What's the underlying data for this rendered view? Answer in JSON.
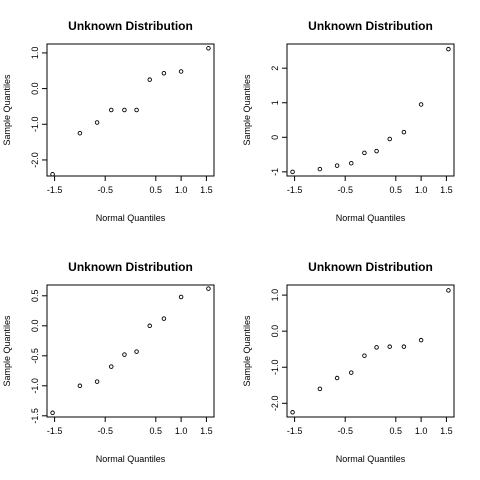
{
  "chart_data": [
    {
      "type": "scatter",
      "title": "Unknown Distribution",
      "xlabel": "Normal Quantiles",
      "ylabel": "Sample Quantiles",
      "xlim": [
        -1.65,
        1.65
      ],
      "ylim": [
        -2.45,
        1.25
      ],
      "x_ticks": [
        "-1.5",
        "-0.5",
        "0.5",
        "1.0",
        "1.5"
      ],
      "y_ticks": [
        "-2.0",
        "-1.0",
        "0.0",
        "1.0"
      ],
      "x": [
        -1.54,
        -1.0,
        -0.66,
        -0.38,
        -0.12,
        0.12,
        0.38,
        0.66,
        1.0,
        1.54
      ],
      "y": [
        -2.4,
        -1.25,
        -0.95,
        -0.6,
        -0.6,
        -0.6,
        0.25,
        0.43,
        0.48,
        1.13
      ]
    },
    {
      "type": "scatter",
      "title": "Unknown Distribution",
      "xlabel": "Normal Quantiles",
      "ylabel": "Sample Quantiles",
      "xlim": [
        -1.65,
        1.65
      ],
      "ylim": [
        -1.12,
        2.7
      ],
      "x_ticks": [
        "-1.5",
        "-0.5",
        "0.5",
        "1.0",
        "1.5"
      ],
      "y_ticks": [
        "-1",
        "0",
        "1",
        "2"
      ],
      "x": [
        -1.54,
        -1.0,
        -0.66,
        -0.38,
        -0.12,
        0.12,
        0.38,
        0.66,
        1.0,
        1.54
      ],
      "y": [
        -1.0,
        -0.92,
        -0.82,
        -0.75,
        -0.45,
        -0.4,
        -0.05,
        0.15,
        0.95,
        2.55
      ]
    },
    {
      "type": "scatter",
      "title": "Unknown Distribution",
      "xlabel": "Normal Quantiles",
      "ylabel": "Sample Quantiles",
      "xlim": [
        -1.65,
        1.65
      ],
      "ylim": [
        -1.52,
        0.68
      ],
      "x_ticks": [
        "-1.5",
        "-0.5",
        "0.5",
        "1.0",
        "1.5"
      ],
      "y_ticks": [
        "-1.5",
        "-1.0",
        "-0.5",
        "0.0",
        "0.5"
      ],
      "x": [
        -1.54,
        -1.0,
        -0.66,
        -0.38,
        -0.12,
        0.12,
        0.38,
        0.66,
        1.0,
        1.54
      ],
      "y": [
        -1.45,
        -1.0,
        -0.93,
        -0.68,
        -0.48,
        -0.43,
        0.0,
        0.12,
        0.48,
        0.62
      ]
    },
    {
      "type": "scatter",
      "title": "Unknown Distribution",
      "xlabel": "Normal Quantiles",
      "ylabel": "Sample Quantiles",
      "xlim": [
        -1.65,
        1.65
      ],
      "ylim": [
        -2.38,
        1.28
      ],
      "x_ticks": [
        "-1.5",
        "-0.5",
        "0.5",
        "1.0",
        "1.5"
      ],
      "y_ticks": [
        "-2.0",
        "-1.0",
        "0.0",
        "1.0"
      ],
      "x": [
        -1.54,
        -1.0,
        -0.66,
        -0.38,
        -0.12,
        0.12,
        0.38,
        0.66,
        1.0,
        1.54
      ],
      "y": [
        -2.25,
        -1.6,
        -1.3,
        -1.15,
        -0.68,
        -0.45,
        -0.43,
        -0.43,
        -0.25,
        1.13
      ]
    }
  ]
}
